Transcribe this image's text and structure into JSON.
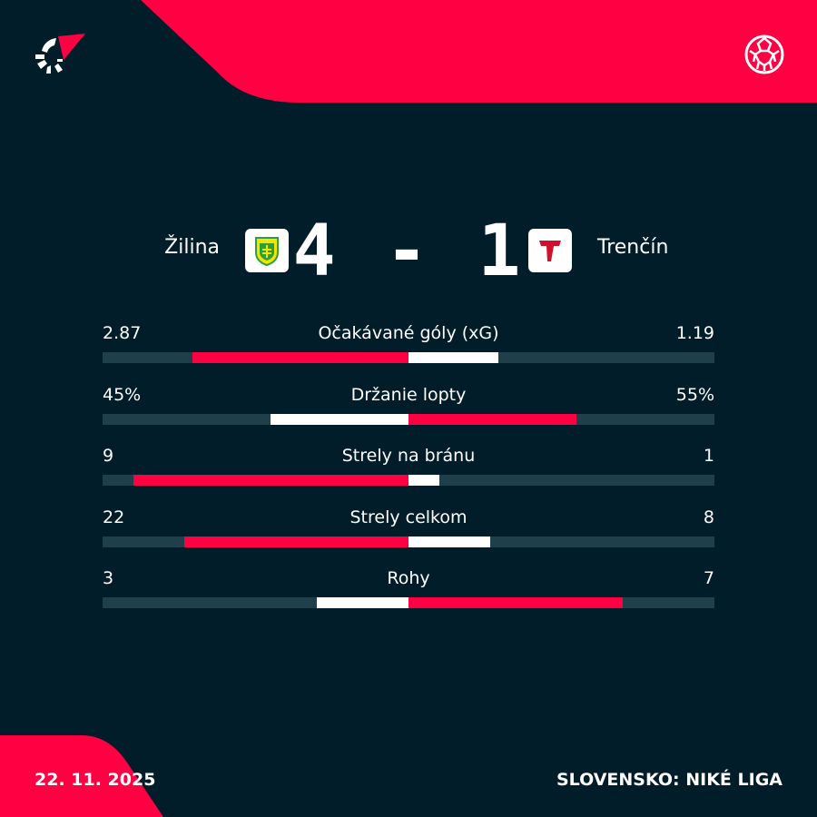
{
  "brand": {
    "accent": "#ff0043",
    "background": "#021d2a",
    "track": "#1f3f4b"
  },
  "icons": {
    "logo": "flashscore-logo-icon",
    "sport": "football-icon"
  },
  "match": {
    "home": {
      "name": "Žilina",
      "score": "4"
    },
    "away": {
      "name": "Trenčín",
      "score": "1"
    },
    "separator": "-"
  },
  "stats": [
    {
      "label": "Očakávané góly (xG)",
      "home": "2.87",
      "away": "1.19",
      "home_share": 0.707,
      "away_share": 0.293
    },
    {
      "label": "Držanie lopty",
      "home": "45%",
      "away": "55%",
      "home_share": 0.45,
      "away_share": 0.55
    },
    {
      "label": "Strely na bránu",
      "home": "9",
      "away": "1",
      "home_share": 0.9,
      "away_share": 0.1
    },
    {
      "label": "Strely celkom",
      "home": "22",
      "away": "8",
      "home_share": 0.733,
      "away_share": 0.267
    },
    {
      "label": "Rohy",
      "home": "3",
      "away": "7",
      "home_share": 0.3,
      "away_share": 0.7
    }
  ],
  "footer": {
    "date": "22. 11. 2025",
    "league": "SLOVENSKO: NIKÉ LIGA"
  }
}
